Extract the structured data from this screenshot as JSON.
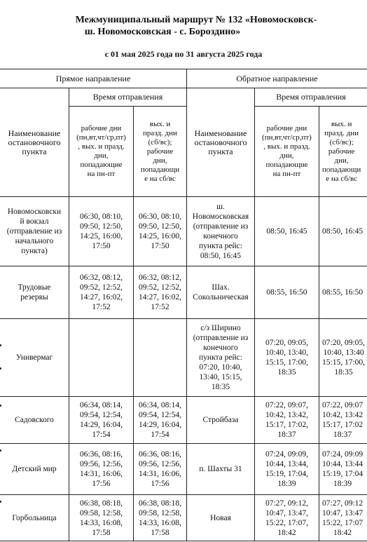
{
  "title": {
    "line1": "Межмуниципальный маршрут № 132 «Новомосковск-",
    "line2": "ш. Новомосковская - с. Бороздино»",
    "period": "с 01 мая 2025 года по 31 августа 2025 года"
  },
  "headers": {
    "forward": "Прямое направление",
    "backward": "Обратное направление",
    "dep_time_fwd": "Время отправления",
    "dep_time_bwd": "Время отправления",
    "stop_name_fwd": "Наименование\nостановочного\nпункта",
    "stop_name_bwd": "Наименование\nостановочного\nпункта",
    "weekdays_fwd": "рабочие дни\n(пн,вт,чт/ср,пт)\n, вых. и празд.\nдни,\nпопадающие\nна пн-пт",
    "weekends_fwd": "вых. и\nпразд. дни\n(сб/вс);\nрабочие\nдни,\nпопадающи\nе на сб/вс",
    "weekdays_bwd": "рабочие дни\n(пн,вт,чт/ср,пт)\n, вых. и празд.\nдни,\nпопадающие\nна пн-пт",
    "weekends_bwd": "вых. и\nпразд. дни\n(сб/вс);\nрабочие\nдни,\nпопадающи\nе на сб/вс"
  },
  "rows": [
    {
      "stop_fwd": "Новомосковски\nй вокзал\n(отправление из\nначального\nпункта)",
      "fwd_weekdays": "06:30, 08:10,\n09:50, 12:50,\n14:25, 16:00,\n17:50",
      "fwd_weekends": "06:30, 08:10,\n09:50, 12:50,\n14:25, 16:00,\n17:50",
      "stop_bwd": "ш.\nНовомосковская\n(отправление из\nконечного\nпункта рейс:\n08:50, 16:45",
      "bwd_weekdays": "08:50, 16:45",
      "bwd_weekends": "08:50, 16:45"
    },
    {
      "stop_fwd": "Трудовые\nрезервы",
      "fwd_weekdays": "06:32, 08:12,\n09:52, 12:52,\n14:27, 16:02,\n17:52",
      "fwd_weekends": "06:32, 08:12,\n09:52, 12:52,\n14:27, 16:02,\n17:52",
      "stop_bwd": "Шах.\nСокольническая",
      "bwd_weekdays": "08:55, 16:50",
      "bwd_weekends": "08:55, 16:50"
    },
    {
      "stop_fwd": "Универмаг",
      "fwd_weekdays": "",
      "fwd_weekends": "",
      "stop_bwd": "с/з Ширино\n(отправление из\nконечного\nпункта рейс:\n07:20, 10:40,\n13:40, 15:15,\n18:35",
      "bwd_weekdays": "07:20, 09:05,\n10:40, 13:40,\n15:15, 17:00,\n18:35",
      "bwd_weekends": "07:20, 09:05,\n10:40, 13:40\n15:15, 17:00,\n18:35"
    },
    {
      "stop_fwd": "Садовского",
      "fwd_weekdays": "06:34, 08:14,\n09:54, 12:54,\n14:29, 16:04,\n17:54",
      "fwd_weekends": "06:34, 08:14,\n09:54, 12:54,\n14:29, 16:04,\n17:54",
      "stop_bwd": "Стройбаза",
      "bwd_weekdays": "07:22, 09:07,\n10:42, 13:42,\n15:17, 17:02,\n18:37",
      "bwd_weekends": "07:22, 09:07\n10:42, 13:42\n15:17, 17:02\n18:37"
    },
    {
      "stop_fwd": "Детский мир",
      "fwd_weekdays": "06:36, 08:16,\n09:56, 12:56,\n14:31, 16:06,\n17:56",
      "fwd_weekends": "06:36, 08:16,\n09:56, 12:56,\n14:31, 16:06,\n17:56",
      "stop_bwd": "п. Шахты 31",
      "bwd_weekdays": "07:24, 09:09,\n10:44, 13:44,\n15:19, 17:04,\n18:39",
      "bwd_weekends": "07:24, 09:09\n10:44, 13:44\n15:19, 17:04\n18:39"
    },
    {
      "stop_fwd": "Горбольница",
      "fwd_weekdays": "06:38, 08:18,\n09:58, 12:58,\n14:33, 16:08,\n17:58",
      "fwd_weekends": "06:38, 08:18,\n09:58, 12:58,\n14:33, 16:08,\n17:58",
      "stop_bwd": "Новая",
      "bwd_weekdays": "07:27, 09:12,\n10:47, 13:47,\n15:22, 17:07,\n18:42",
      "bwd_weekends": "07:27, 09:12\n10:47, 13:47\n15:22, 17:07\n18:42"
    }
  ]
}
